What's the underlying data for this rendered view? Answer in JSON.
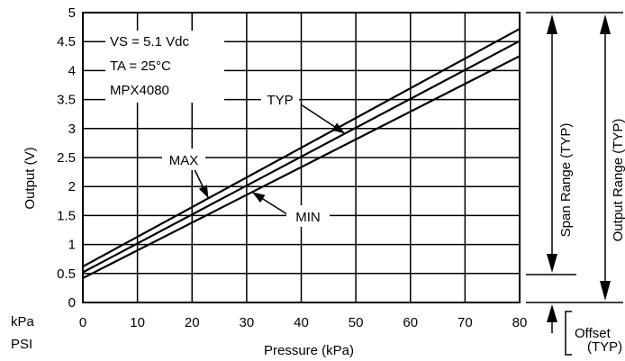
{
  "chart_data": {
    "type": "line",
    "xlabel": "Pressure (kPa)",
    "ylabel": "Output (V)",
    "xlim": [
      0,
      80
    ],
    "ylim": [
      0,
      5
    ],
    "x_ticks": [
      0,
      10,
      20,
      30,
      40,
      50,
      60,
      70,
      80
    ],
    "y_ticks": [
      0,
      0.5,
      1,
      1.5,
      2,
      2.5,
      3,
      3.5,
      4,
      4.5,
      5
    ],
    "x_tick_labels": [
      "0",
      "10",
      "20",
      "30",
      "40",
      "50",
      "60",
      "70",
      "80"
    ],
    "y_tick_labels": [
      "0",
      "0.5",
      "1",
      "1.5",
      "2",
      "2.5",
      "3",
      "3.5",
      "4",
      "4.5",
      "5"
    ],
    "grid": true,
    "series": [
      {
        "name": "MAX",
        "x": [
          0,
          80
        ],
        "y": [
          0.62,
          4.72
        ]
      },
      {
        "name": "TYP",
        "x": [
          0,
          80
        ],
        "y": [
          0.52,
          4.51
        ]
      },
      {
        "name": "MIN",
        "x": [
          0,
          80
        ],
        "y": [
          0.42,
          4.25
        ]
      }
    ],
    "info_lines": [
      "VS = 5.1 Vdc",
      "TA = 25°C",
      "MPX4080"
    ],
    "unit_labels": {
      "kpa": "kPa",
      "psi": "PSI"
    },
    "annotations": {
      "span": "Span Range (TYP)",
      "output": "Output Range (TYP)",
      "offset_line1": "Offset",
      "offset_line2": "(TYP)"
    }
  }
}
